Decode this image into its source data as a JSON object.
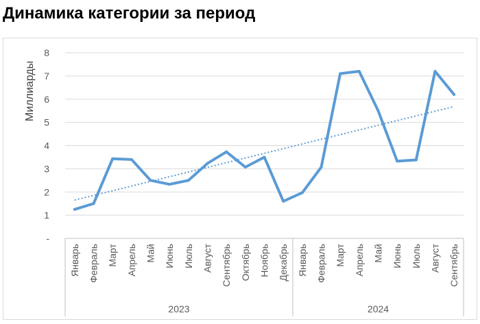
{
  "page_title": "Динамика категории за период",
  "chart_data": {
    "type": "line",
    "ylabel": "Миллиарды",
    "ylim": [
      0,
      8
    ],
    "yticks": [
      "-",
      "1",
      "2",
      "3",
      "4",
      "5",
      "6",
      "7",
      "8"
    ],
    "grid": true,
    "legend": "none",
    "groups": [
      {
        "label": "2023",
        "months": [
          "Январь",
          "Февраль",
          "Март",
          "Апрель",
          "Май",
          "Июнь",
          "Июль",
          "Август",
          "Сентябрь",
          "Октябрь",
          "Ноябрь",
          "Декабрь"
        ]
      },
      {
        "label": "2024",
        "months": [
          "Январь",
          "Февраль",
          "Март",
          "Апрель",
          "Май",
          "Июнь",
          "Июль",
          "Август",
          "Сентябрь"
        ]
      }
    ],
    "series": [
      {
        "values": [
          1.25,
          1.5,
          3.43,
          3.4,
          2.5,
          2.33,
          2.5,
          3.23,
          3.73,
          3.07,
          3.5,
          1.6,
          1.97,
          3.07,
          7.1,
          7.2,
          5.5,
          3.33,
          3.38,
          7.2,
          6.2
        ],
        "color": "#5b9bd5"
      }
    ],
    "trendline": {
      "type": "linear",
      "color": "#5b9bd5",
      "style": "dotted"
    }
  }
}
